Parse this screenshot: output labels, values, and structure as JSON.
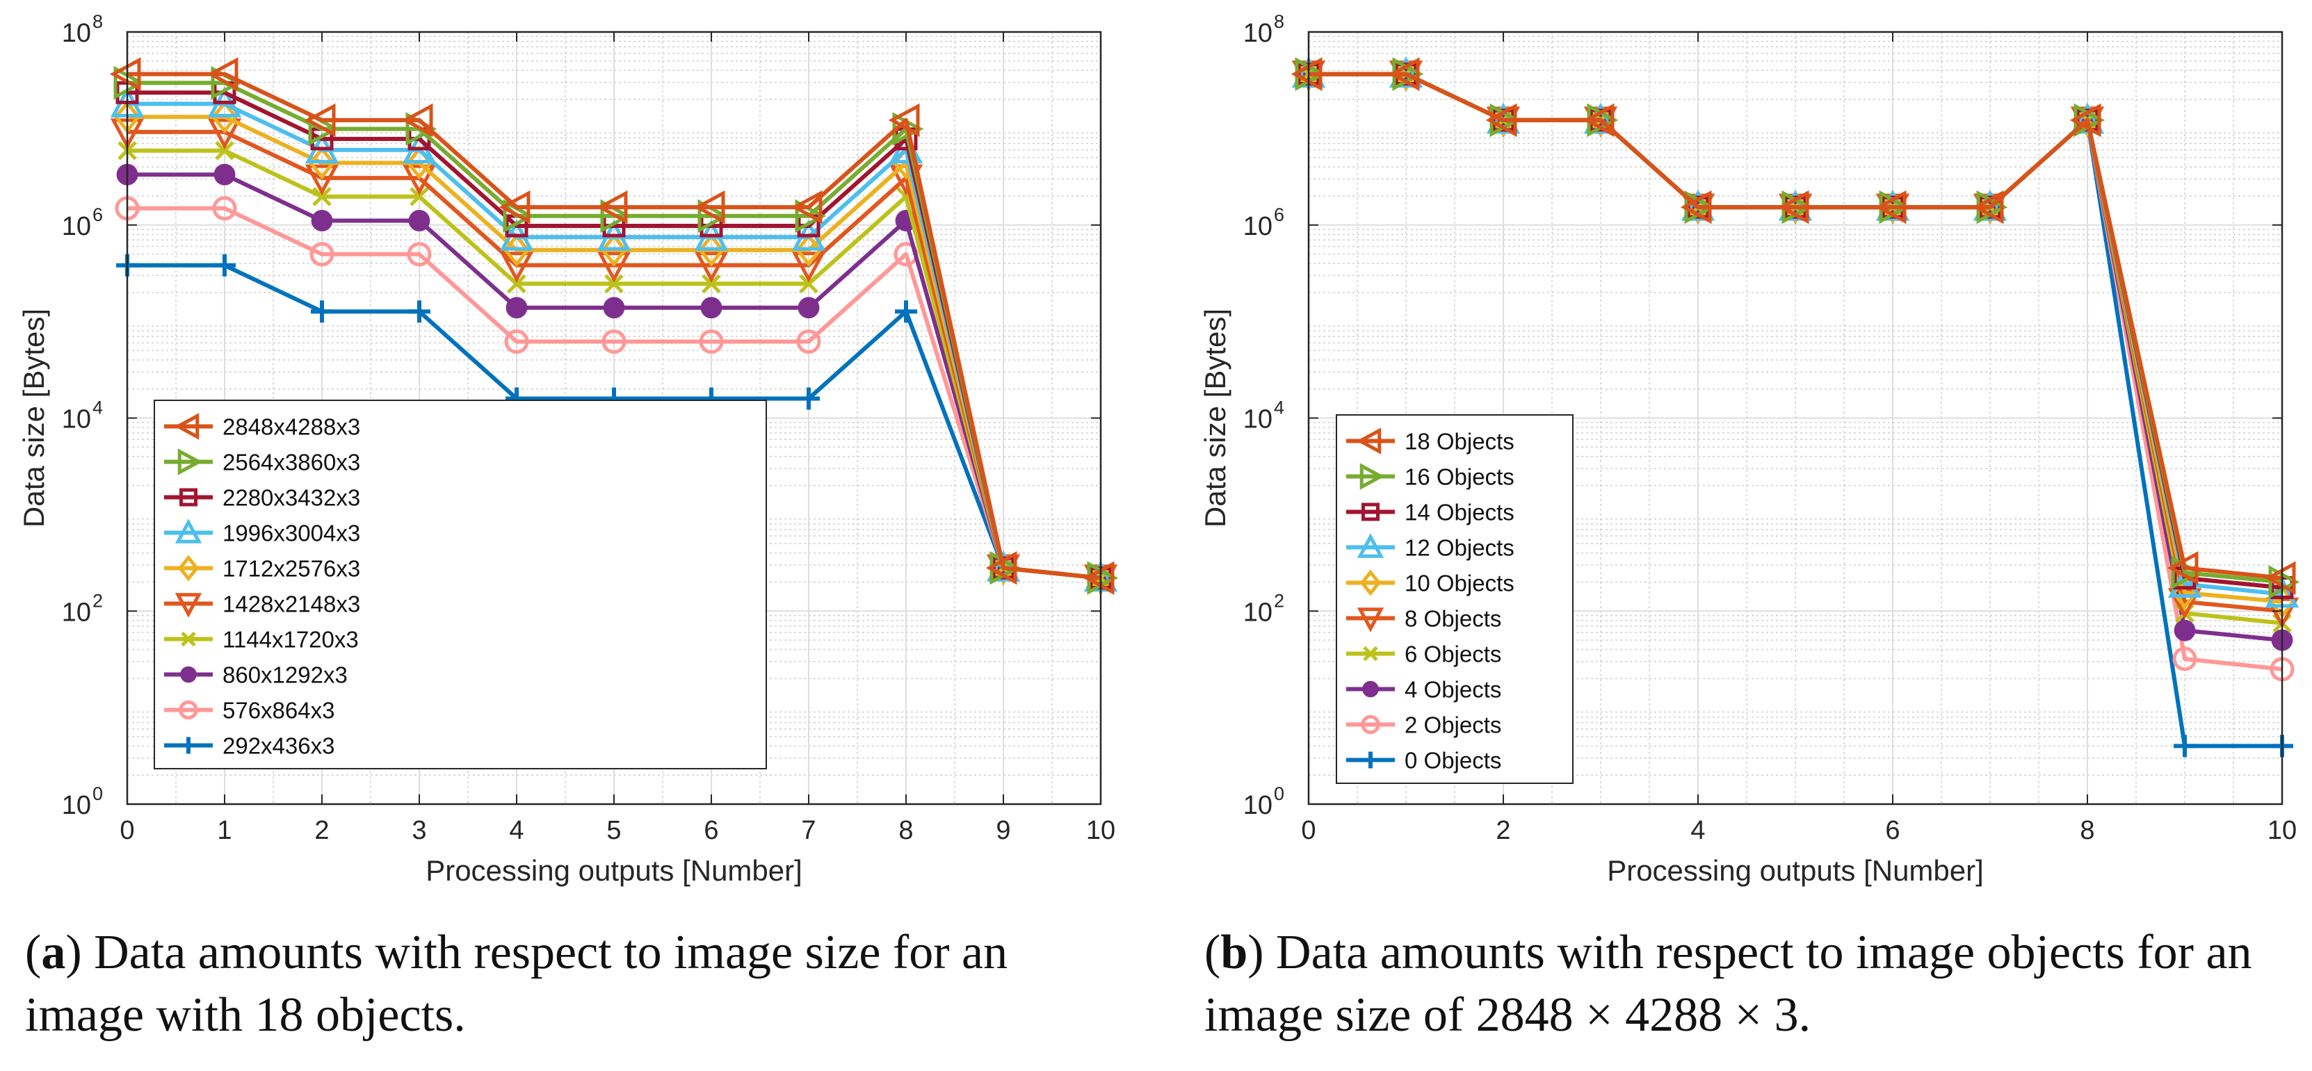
{
  "chart_data": [
    {
      "type": "line",
      "xlabel": "Processing outputs [Number]",
      "ylabel": "Data size [Bytes]",
      "yscale": "log",
      "xlim": [
        0,
        10
      ],
      "ylim": [
        1,
        100000000
      ],
      "xticks": [
        0,
        1,
        2,
        3,
        4,
        5,
        6,
        7,
        8,
        9,
        10
      ],
      "yticks": [
        {
          "value": 1,
          "base": "10",
          "exp": "0"
        },
        {
          "value": 100,
          "base": "10",
          "exp": "2"
        },
        {
          "value": 10000,
          "base": "10",
          "exp": "4"
        },
        {
          "value": 1000000,
          "base": "10",
          "exp": "6"
        },
        {
          "value": 100000000,
          "base": "10",
          "exp": "8"
        }
      ],
      "grid": true,
      "legend_position": "lower-left",
      "caption": {
        "label": "a",
        "text": ") Data amounts with respect to image size for an image with 18 objects."
      },
      "x": [
        0,
        1,
        2,
        3,
        4,
        5,
        6,
        7,
        8,
        9,
        10
      ],
      "series": [
        {
          "name": "2848x4288x3",
          "color": "#d95319",
          "marker": "triangle-left",
          "values": [
            36600000,
            36600000,
            12200000,
            12200000,
            1530000,
            1530000,
            1530000,
            1530000,
            12200000,
            280,
            220
          ]
        },
        {
          "name": "2564x3860x3",
          "color": "#77ac30",
          "marker": "triangle-right",
          "values": [
            29700000,
            29700000,
            9900000,
            9900000,
            1240000,
            1240000,
            1240000,
            1240000,
            9900000,
            280,
            220
          ]
        },
        {
          "name": "2280x3432x3",
          "color": "#a2142f",
          "marker": "square",
          "values": [
            23500000,
            23500000,
            7800000,
            7800000,
            980000,
            980000,
            980000,
            980000,
            7800000,
            280,
            220
          ]
        },
        {
          "name": "1996x3004x3",
          "color": "#4dbeee",
          "marker": "triangle-up",
          "values": [
            18000000,
            18000000,
            6000000,
            6000000,
            750000,
            750000,
            750000,
            750000,
            6000000,
            280,
            220
          ]
        },
        {
          "name": "1712x2576x3",
          "color": "#edb120",
          "marker": "diamond",
          "values": [
            13200000,
            13200000,
            4400000,
            4400000,
            550000,
            550000,
            550000,
            550000,
            4400000,
            280,
            220
          ]
        },
        {
          "name": "1428x2148x3",
          "color": "#e2571e",
          "marker": "triangle-down",
          "values": [
            9200000,
            9200000,
            3070000,
            3070000,
            383000,
            383000,
            383000,
            383000,
            3070000,
            280,
            220
          ]
        },
        {
          "name": "1144x1720x3",
          "color": "#bdc21a",
          "marker": "x",
          "values": [
            5900000,
            5900000,
            1970000,
            1970000,
            246000,
            246000,
            246000,
            246000,
            1970000,
            280,
            220
          ]
        },
        {
          "name": "860x1292x3",
          "color": "#7e2f8e",
          "marker": "circle-filled",
          "values": [
            3330000,
            3330000,
            1110000,
            1110000,
            139000,
            139000,
            139000,
            139000,
            1110000,
            280,
            220
          ]
        },
        {
          "name": "576x864x3",
          "color": "#ff9896",
          "marker": "circle-open",
          "values": [
            1490000,
            1490000,
            498000,
            498000,
            62000,
            62000,
            62000,
            62000,
            498000,
            280,
            220
          ]
        },
        {
          "name": "292x436x3",
          "color": "#0072bd",
          "marker": "plus",
          "values": [
            382000,
            382000,
            127000,
            127000,
            15900,
            15900,
            15900,
            15900,
            127000,
            280,
            220
          ]
        }
      ]
    },
    {
      "type": "line",
      "xlabel": "Processing outputs [Number]",
      "ylabel": "Data size [Bytes]",
      "yscale": "log",
      "xlim": [
        0,
        10
      ],
      "ylim": [
        1,
        100000000
      ],
      "xticks": [
        0,
        2,
        4,
        6,
        8,
        10
      ],
      "yticks": [
        {
          "value": 1,
          "base": "10",
          "exp": "0"
        },
        {
          "value": 100,
          "base": "10",
          "exp": "2"
        },
        {
          "value": 10000,
          "base": "10",
          "exp": "4"
        },
        {
          "value": 1000000,
          "base": "10",
          "exp": "6"
        },
        {
          "value": 100000000,
          "base": "10",
          "exp": "8"
        }
      ],
      "grid": true,
      "legend_position": "lower-left",
      "caption": {
        "label": "b",
        "text": ") Data amounts with respect to image objects for an image size of 2848 × 4288 × 3."
      },
      "x": [
        0,
        1,
        2,
        3,
        4,
        5,
        6,
        7,
        8,
        9,
        10
      ],
      "series": [
        {
          "name": "18 Objects",
          "color": "#d95319",
          "marker": "triangle-left",
          "values": [
            36600000,
            36600000,
            12200000,
            12200000,
            1530000,
            1530000,
            1530000,
            1530000,
            12200000,
            280,
            220
          ]
        },
        {
          "name": "16 Objects",
          "color": "#77ac30",
          "marker": "triangle-right",
          "values": [
            36600000,
            36600000,
            12200000,
            12200000,
            1530000,
            1530000,
            1530000,
            1530000,
            12200000,
            250,
            200
          ]
        },
        {
          "name": "14 Objects",
          "color": "#a2142f",
          "marker": "square",
          "values": [
            36600000,
            36600000,
            12200000,
            12200000,
            1530000,
            1530000,
            1530000,
            1530000,
            12200000,
            220,
            175
          ]
        },
        {
          "name": "12 Objects",
          "color": "#4dbeee",
          "marker": "triangle-up",
          "values": [
            36600000,
            36600000,
            12200000,
            12200000,
            1530000,
            1530000,
            1530000,
            1530000,
            12200000,
            190,
            150
          ]
        },
        {
          "name": "10 Objects",
          "color": "#edb120",
          "marker": "diamond",
          "values": [
            36600000,
            36600000,
            12200000,
            12200000,
            1530000,
            1530000,
            1530000,
            1530000,
            12200000,
            155,
            125
          ]
        },
        {
          "name": "8 Objects",
          "color": "#e2571e",
          "marker": "triangle-down",
          "values": [
            36600000,
            36600000,
            12200000,
            12200000,
            1530000,
            1530000,
            1530000,
            1530000,
            12200000,
            125,
            100
          ]
        },
        {
          "name": "6 Objects",
          "color": "#bdc21a",
          "marker": "x",
          "values": [
            36600000,
            36600000,
            12200000,
            12200000,
            1530000,
            1530000,
            1530000,
            1530000,
            12200000,
            95,
            75
          ]
        },
        {
          "name": "4 Objects",
          "color": "#7e2f8e",
          "marker": "circle-filled",
          "values": [
            36600000,
            36600000,
            12200000,
            12200000,
            1530000,
            1530000,
            1530000,
            1530000,
            12200000,
            63,
            50
          ]
        },
        {
          "name": "2 Objects",
          "color": "#ff9896",
          "marker": "circle-open",
          "values": [
            36600000,
            36600000,
            12200000,
            12200000,
            1530000,
            1530000,
            1530000,
            1530000,
            12200000,
            32,
            25
          ]
        },
        {
          "name": "0 Objects",
          "color": "#0072bd",
          "marker": "plus",
          "values": [
            36600000,
            36600000,
            12200000,
            12200000,
            1530000,
            1530000,
            1530000,
            1530000,
            12200000,
            4,
            4
          ]
        }
      ]
    }
  ]
}
